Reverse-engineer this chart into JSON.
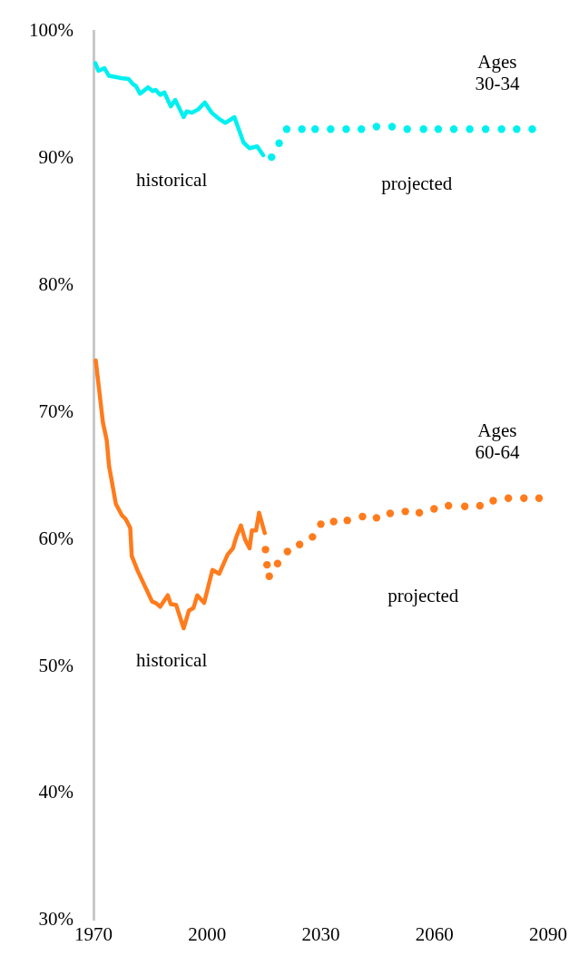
{
  "chart_data": {
    "type": "line",
    "xlim": [
      1970,
      2090
    ],
    "xticks": [
      1970,
      2000,
      2030,
      2060,
      2090
    ],
    "ylim": [
      30,
      100
    ],
    "yticks": [
      {
        "value": 30,
        "label": "30%"
      },
      {
        "value": 40,
        "label": "40%"
      },
      {
        "value": 50,
        "label": "50%"
      },
      {
        "value": 60,
        "label": "60%"
      },
      {
        "value": 70,
        "label": "70%"
      },
      {
        "value": 80,
        "label": "80%"
      },
      {
        "value": 90,
        "label": "90%"
      },
      {
        "value": 100,
        "label": "100%"
      }
    ],
    "grid": false,
    "legend": false,
    "series": [
      {
        "color": "#00f0f0",
        "line_style": "solid",
        "marker": "none",
        "x": [
          1970.5,
          1971.3,
          1972.9,
          1974.1,
          1976.1,
          1977.7,
          1979.3,
          1980.4,
          1981.2,
          1982.3,
          1984.4,
          1985.6,
          1986.4,
          1987.6,
          1988.7,
          1990.4,
          1991.6,
          1993.8,
          1994.6,
          1996,
          1997.6,
          1999.4,
          2001.2,
          2003.2,
          2004.8,
          2007.2,
          2009.6,
          2011.2,
          2013.2,
          2014.8
        ],
        "values": [
          97.5,
          96.9,
          97.1,
          96.5,
          96.4,
          96.3,
          96.25,
          95.85,
          95.7,
          95.1,
          95.6,
          95.3,
          95.4,
          95.0,
          95.2,
          94.1,
          94.6,
          93.25,
          93.7,
          93.6,
          93.85,
          94.4,
          93.6,
          93.1,
          92.8,
          93.25,
          91.25,
          90.8,
          90.95,
          90.25
        ]
      },
      {
        "type": "scatter",
        "color": "#00f0f0",
        "marker": "circle",
        "x": [
          2017,
          2019,
          2021,
          2025,
          2028.5,
          2032.6,
          2036.7,
          2040.7,
          2044.7,
          2048.8,
          2052.8,
          2057.1,
          2061,
          2065.1,
          2069.3,
          2073.5,
          2077.7,
          2081.7,
          2085.8
        ],
        "values": [
          90.1,
          91.2,
          92.3,
          92.3,
          92.3,
          92.3,
          92.3,
          92.3,
          92.5,
          92.5,
          92.3,
          92.3,
          92.3,
          92.3,
          92.3,
          92.3,
          92.3,
          92.3,
          92.3
        ]
      },
      {
        "color": "#ff7b1c",
        "line_style": "solid",
        "marker": "none",
        "x": [
          1970.6,
          1972.5,
          1973.5,
          1974.1,
          1975.9,
          1977.5,
          1978.5,
          1979.7,
          1980.1,
          1981.7,
          1985.5,
          1986.4,
          1987.6,
          1989.6,
          1990.4,
          1991.8,
          1993.8,
          1995.2,
          1996.4,
          1997.4,
          1999.2,
          2001.4,
          2003.2,
          2005.4,
          2006.8,
          2007.7,
          2008.9,
          2010,
          2011.2,
          2011.8,
          2012.9,
          2013.7,
          2015.2
        ],
        "values": [
          74.1,
          69.2,
          67.8,
          65.8,
          62.8,
          61.9,
          61.6,
          60.9,
          58.7,
          57.5,
          55.1,
          55.0,
          54.7,
          55.6,
          54.9,
          54.85,
          53.0,
          54.4,
          54.6,
          55.6,
          55.0,
          57.6,
          57.3,
          58.8,
          59.3,
          60.2,
          61.1,
          60.0,
          59.3,
          60.7,
          60.7,
          62.1,
          60.5
        ]
      },
      {
        "type": "scatter",
        "color": "#ff7b1c",
        "marker": "circle",
        "x": [
          2015.4,
          2015.8,
          2016.4,
          2018.6,
          2021.2,
          2024.4,
          2027.8,
          2030,
          2033.4,
          2037,
          2041,
          2044.7,
          2048.3,
          2052.3,
          2056,
          2059.9,
          2063.7,
          2068,
          2072,
          2075.5,
          2079.5,
          2083.6,
          2087.6
        ],
        "values": [
          59.2,
          58.0,
          57.1,
          58.1,
          59.05,
          59.6,
          60.2,
          61.2,
          61.4,
          61.5,
          61.8,
          61.7,
          62.05,
          62.2,
          62.1,
          62.4,
          62.65,
          62.6,
          62.65,
          63.05,
          63.25,
          63.25,
          63.25
        ]
      }
    ],
    "annotations": [
      "Ages\n30-34",
      "historical",
      "projected",
      "Ages\n60-64",
      "historical",
      "projected"
    ]
  }
}
